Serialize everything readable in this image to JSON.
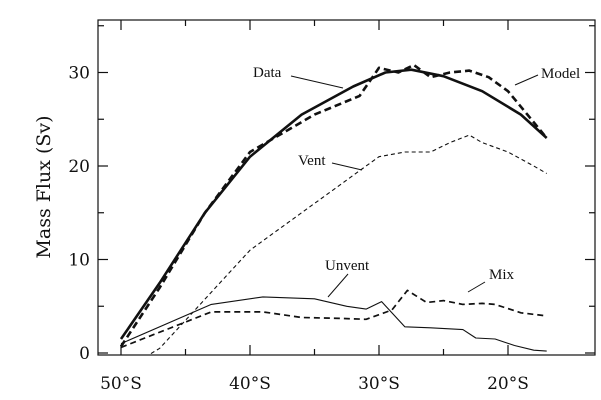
{
  "chart_data": {
    "type": "line",
    "title": "",
    "xlabel": "",
    "ylabel": "Mass Flux (Sv)",
    "xlim": [
      -50,
      -16.7
    ],
    "ylim": [
      0,
      35
    ],
    "grid": false,
    "legend": "none",
    "x_ticks": [
      {
        "value": -50,
        "label": "50°S"
      },
      {
        "value": -40,
        "label": "40°S"
      },
      {
        "value": -30,
        "label": "30°S"
      },
      {
        "value": -20,
        "label": "20°S"
      }
    ],
    "y_ticks": [
      {
        "value": 0,
        "label": "0"
      },
      {
        "value": 10,
        "label": "10"
      },
      {
        "value": 20,
        "label": "20"
      },
      {
        "value": 30,
        "label": "30"
      }
    ],
    "series": [
      {
        "name": "Data",
        "style": "solid-thick",
        "x": [
          -50,
          -47,
          -43.5,
          -40,
          -36,
          -32,
          -29.5,
          -27.5,
          -25,
          -22,
          -19,
          -17
        ],
        "y": [
          1.5,
          7.5,
          15,
          21,
          25.5,
          28.5,
          30,
          30.3,
          29.6,
          28,
          25.5,
          23
        ]
      },
      {
        "name": "Model",
        "style": "dashed-thick",
        "x": [
          -50,
          -47,
          -43.5,
          -40,
          -35,
          -31.5,
          -30,
          -28.5,
          -27.3,
          -26,
          -24.5,
          -23,
          -21.5,
          -20,
          -18.5,
          -17
        ],
        "y": [
          0.7,
          7,
          15,
          21.5,
          25.5,
          27.5,
          30.5,
          30,
          30.8,
          29.5,
          30,
          30.2,
          29.5,
          28,
          25.5,
          23
        ]
      },
      {
        "name": "Vent",
        "style": "dashed-thin",
        "x": [
          -50,
          -47,
          -44,
          -42,
          -40,
          -37,
          -34,
          -31,
          -30,
          -28,
          -26,
          -24.5,
          -23,
          -22,
          -20,
          -18,
          -17
        ],
        "y": [
          -2,
          0.5,
          5,
          8,
          11,
          14,
          17,
          20,
          21,
          21.5,
          21.5,
          22.5,
          23.3,
          22.5,
          21.5,
          20,
          19.2
        ]
      },
      {
        "name": "Unvent",
        "style": "solid-thin",
        "x": [
          -50,
          -43,
          -39,
          -35,
          -32.5,
          -31,
          -29.8,
          -28,
          -26,
          -23.5,
          -22.5,
          -21,
          -19.5,
          -18,
          -17
        ],
        "y": [
          1,
          5.2,
          6,
          5.8,
          5,
          4.7,
          5.5,
          2.8,
          2.7,
          2.5,
          1.6,
          1.5,
          0.8,
          0.3,
          0.2
        ]
      },
      {
        "name": "Mix",
        "style": "dashed-medium",
        "x": [
          -50,
          -43,
          -39,
          -36,
          -33,
          -31,
          -29,
          -27.8,
          -26.3,
          -25,
          -23.5,
          -22,
          -21,
          -19,
          -17.2
        ],
        "y": [
          0.6,
          4.4,
          4.4,
          3.8,
          3.7,
          3.6,
          4.6,
          6.7,
          5.4,
          5.6,
          5.2,
          5.3,
          5.2,
          4.3,
          4
        ]
      }
    ],
    "annotations": [
      {
        "text": "Data",
        "series": "Data"
      },
      {
        "text": "Model",
        "series": "Model"
      },
      {
        "text": "Vent",
        "series": "Vent"
      },
      {
        "text": "Unvent",
        "series": "Unvent"
      },
      {
        "text": "Mix",
        "series": "Mix"
      }
    ]
  }
}
